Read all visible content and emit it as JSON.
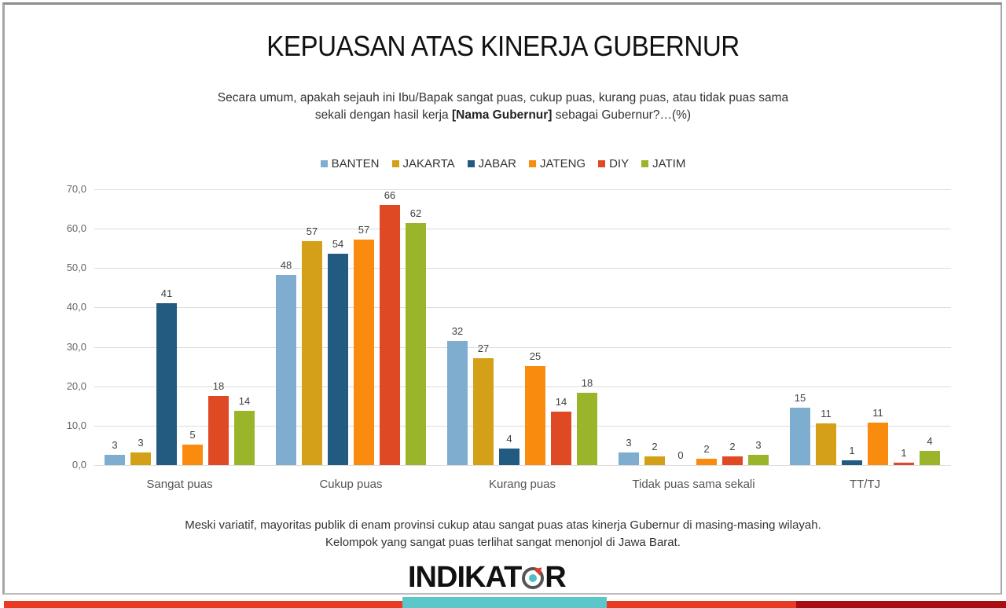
{
  "title": "KEPUASAN ATAS KINERJA GUBERNUR",
  "question": {
    "part1": "Secara umum, apakah sejauh ini Ibu/Bapak sangat puas, cukup puas, kurang puas, atau tidak puas sama",
    "part2_pre": "sekali dengan hasil kerja ",
    "part2_bold": "[Nama Gubernur]",
    "part2_post": " sebagai Gubernur?…(%)"
  },
  "footnote": {
    "line1": "Meski variatif, mayoritas publik di enam provinsi cukup atau sangat puas atas kinerja Gubernur di masing-masing wilayah.",
    "line2": "Kelompok yang sangat puas terlihat sangat menonjol di Jawa Barat."
  },
  "logo": {
    "pre": "INDIKAT",
    "post": "R"
  },
  "colors": {
    "BANTEN": "#7eadd0",
    "JAKARTA": "#d4a017",
    "JABAR": "#235a80",
    "JATENG": "#f98b0f",
    "DIY": "#df4a25",
    "JATIM": "#9bb52a"
  },
  "chart_data": {
    "type": "bar",
    "title": "KEPUASAN ATAS KINERJA GUBERNUR",
    "xlabel": "",
    "ylabel": "",
    "ylim": [
      0,
      70
    ],
    "yticks": [
      "0,0",
      "10,0",
      "20,0",
      "30,0",
      "40,0",
      "50,0",
      "60,0",
      "70,0"
    ],
    "grid": true,
    "legend_position": "top",
    "categories": [
      "Sangat puas",
      "Cukup puas",
      "Kurang puas",
      "Tidak puas sama sekali",
      "TT/TJ"
    ],
    "series": [
      {
        "name": "BANTEN",
        "values": [
          3,
          48,
          32,
          3,
          15
        ],
        "plot": [
          2.5,
          48.3,
          31.5,
          3.2,
          14.6
        ]
      },
      {
        "name": "JAKARTA",
        "values": [
          3,
          57,
          27,
          2,
          11
        ],
        "plot": [
          3.2,
          56.8,
          27.1,
          2.2,
          10.6
        ]
      },
      {
        "name": "JABAR",
        "values": [
          41,
          54,
          4,
          0,
          1
        ],
        "plot": [
          41.1,
          53.6,
          4.1,
          0.0,
          1.2
        ]
      },
      {
        "name": "JATENG",
        "values": [
          5,
          57,
          25,
          2,
          11
        ],
        "plot": [
          5.2,
          57.2,
          25.1,
          1.6,
          10.7
        ]
      },
      {
        "name": "DIY",
        "values": [
          18,
          66,
          14,
          2,
          1
        ],
        "plot": [
          17.6,
          66.1,
          13.5,
          2.1,
          0.5
        ]
      },
      {
        "name": "JATIM",
        "values": [
          14,
          62,
          18,
          3,
          4
        ],
        "plot": [
          13.8,
          61.5,
          18.4,
          2.6,
          3.5
        ]
      }
    ]
  }
}
